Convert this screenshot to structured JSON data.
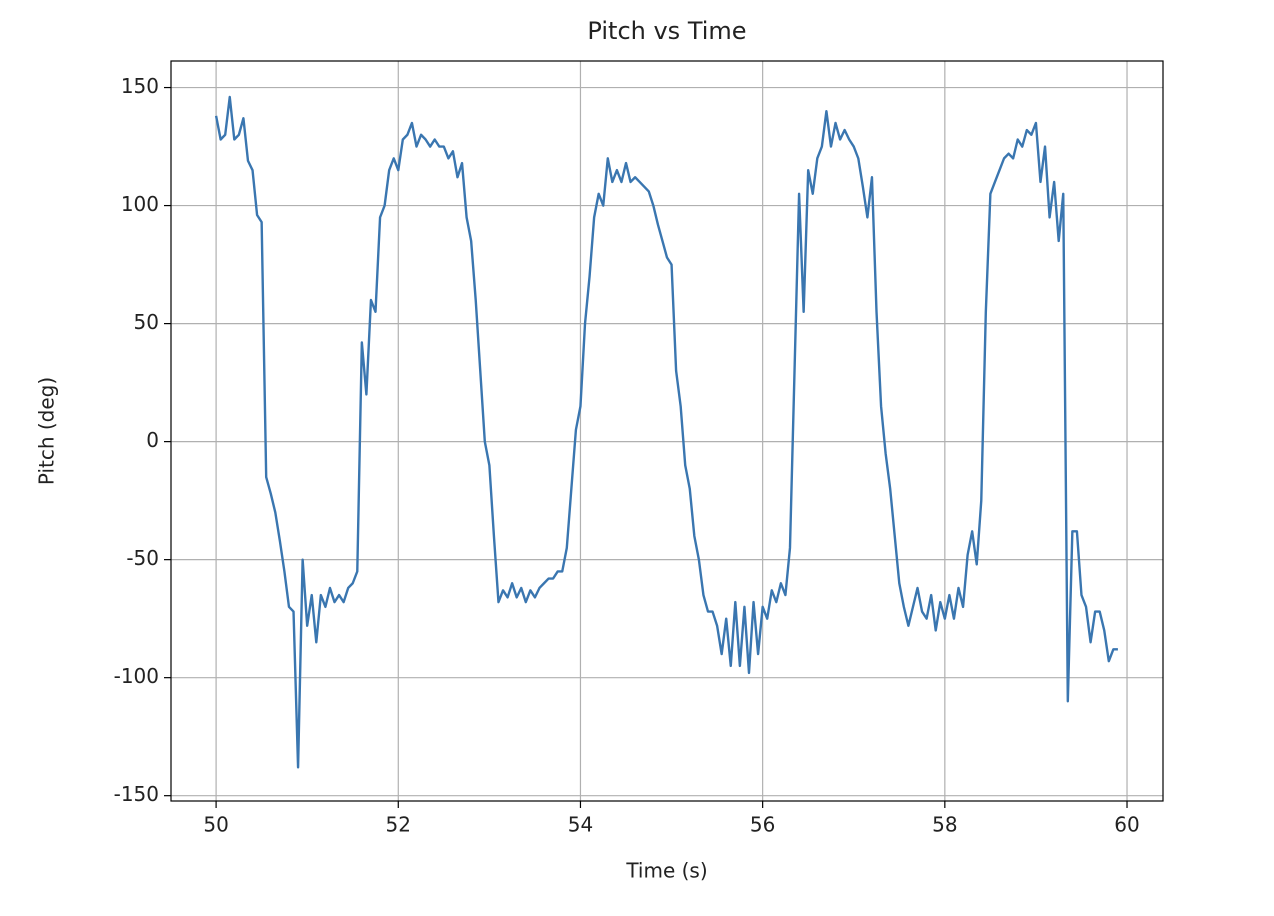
{
  "chart_data": {
    "type": "line",
    "title": "Pitch vs Time",
    "x_label": "Time (s)",
    "y_label": "Pitch (deg)",
    "x": [
      50.0,
      50.05,
      50.1,
      50.15,
      50.2,
      50.25,
      50.3,
      50.35,
      50.4,
      50.45,
      50.5,
      50.55,
      50.6,
      50.65,
      50.7,
      50.75,
      50.8,
      50.85,
      50.9,
      50.95,
      51.0,
      51.05,
      51.1,
      51.15,
      51.2,
      51.25,
      51.3,
      51.35,
      51.4,
      51.45,
      51.5,
      51.55,
      51.6,
      51.65,
      51.7,
      51.75,
      51.8,
      51.85,
      51.9,
      51.95,
      52.0,
      52.05,
      52.1,
      52.15,
      52.2,
      52.25,
      52.3,
      52.35,
      52.4,
      52.45,
      52.5,
      52.55,
      52.6,
      52.65,
      52.7,
      52.75,
      52.8,
      52.85,
      52.9,
      52.95,
      53.0,
      53.05,
      53.1,
      53.15,
      53.2,
      53.25,
      53.3,
      53.35,
      53.4,
      53.45,
      53.5,
      53.55,
      53.6,
      53.65,
      53.7,
      53.75,
      53.8,
      53.85,
      53.9,
      53.95,
      54.0,
      54.05,
      54.1,
      54.15,
      54.2,
      54.25,
      54.3,
      54.35,
      54.4,
      54.45,
      54.5,
      54.55,
      54.6,
      54.65,
      54.7,
      54.75,
      54.8,
      54.85,
      54.9,
      54.95,
      55.0,
      55.05,
      55.1,
      55.15,
      55.2,
      55.25,
      55.3,
      55.35,
      55.4,
      55.45,
      55.5,
      55.55,
      55.6,
      55.65,
      55.7,
      55.75,
      55.8,
      55.85,
      55.9,
      55.95,
      56.0,
      56.05,
      56.1,
      56.15,
      56.2,
      56.25,
      56.3,
      56.35,
      56.4,
      56.45,
      56.5,
      56.55,
      56.6,
      56.65,
      56.7,
      56.75,
      56.8,
      56.85,
      56.9,
      56.95,
      57.0,
      57.05,
      57.1,
      57.15,
      57.2,
      57.25,
      57.3,
      57.35,
      57.4,
      57.45,
      57.5,
      57.55,
      57.6,
      57.65,
      57.7,
      57.75,
      57.8,
      57.85,
      57.9,
      57.95,
      58.0,
      58.05,
      58.1,
      58.15,
      58.2,
      58.25,
      58.3,
      58.35,
      58.4,
      58.45,
      58.5,
      58.55,
      58.6,
      58.65,
      58.7,
      58.75,
      58.8,
      58.85,
      58.9,
      58.95,
      59.0,
      59.05,
      59.1,
      59.15,
      59.2,
      59.25,
      59.3,
      59.35,
      59.4,
      59.45,
      59.5,
      59.55,
      59.6,
      59.65,
      59.7,
      59.75,
      59.8,
      59.85,
      59.9
    ],
    "series": [
      {
        "name": "Pitch",
        "color": "#3a76b0",
        "values": [
          138,
          128,
          130,
          146,
          128,
          130,
          137,
          119,
          115,
          96,
          93,
          -15,
          -22,
          -30,
          -42,
          -55,
          -70,
          -72,
          -138,
          -50,
          -78,
          -65,
          -85,
          -65,
          -70,
          -62,
          -68,
          -65,
          -68,
          -62,
          -60,
          -55,
          42,
          20,
          60,
          55,
          95,
          100,
          115,
          120,
          115,
          128,
          130,
          135,
          125,
          130,
          128,
          125,
          128,
          125,
          125,
          120,
          123,
          112,
          118,
          95,
          85,
          60,
          30,
          0,
          -10,
          -40,
          -68,
          -63,
          -66,
          -60,
          -66,
          -62,
          -68,
          -63,
          -66,
          -62,
          -60,
          -58,
          -58,
          -55,
          -55,
          -45,
          -20,
          5,
          15,
          50,
          70,
          95,
          105,
          100,
          120,
          110,
          115,
          110,
          118,
          110,
          112,
          110,
          108,
          106,
          100,
          92,
          85,
          78,
          75,
          30,
          15,
          -10,
          -20,
          -40,
          -50,
          -65,
          -72,
          -72,
          -78,
          -90,
          -75,
          -95,
          -68,
          -95,
          -70,
          -98,
          -68,
          -90,
          -70,
          -75,
          -63,
          -68,
          -60,
          -65,
          -45,
          30,
          105,
          55,
          115,
          105,
          120,
          125,
          140,
          125,
          135,
          128,
          132,
          128,
          125,
          120,
          108,
          95,
          112,
          55,
          15,
          -5,
          -20,
          -40,
          -60,
          -70,
          -78,
          -70,
          -62,
          -72,
          -75,
          -65,
          -80,
          -68,
          -75,
          -65,
          -75,
          -62,
          -70,
          -48,
          -38,
          -52,
          -25,
          55,
          105,
          110,
          115,
          120,
          122,
          120,
          128,
          125,
          132,
          130,
          135,
          110,
          125,
          95,
          110,
          85,
          105,
          -110,
          -38,
          -38,
          -65,
          -70,
          -85,
          -72,
          -72,
          -80,
          -93,
          -88,
          -88
        ]
      }
    ],
    "xlim": [
      49.505,
      60.395
    ],
    "ylim": [
      -152.25,
      161.25
    ],
    "xticks": [
      50,
      52,
      54,
      56,
      58,
      60
    ],
    "yticks": [
      -150,
      -100,
      -50,
      0,
      50,
      100,
      150
    ],
    "grid": true
  }
}
